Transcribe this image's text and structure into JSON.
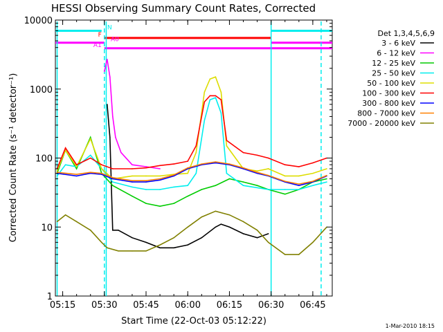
{
  "chart_data": {
    "type": "line",
    "title": "HESSI Observing Summary Count Rates, Corrected",
    "xlabel": "Start Time (22-Oct-03 05:12:22)",
    "ylabel": "Corrected Count Rate (s⁻¹ detector⁻¹)",
    "y_scale": "log",
    "ylim": [
      1,
      10000
    ],
    "xlim": [
      "05:12:22",
      "06:52"
    ],
    "x_ticks": [
      "05:15",
      "05:30",
      "05:45",
      "06:00",
      "06:15",
      "06:30",
      "06:45"
    ],
    "y_ticks": [
      "1",
      "10",
      "100",
      "1000",
      "10000"
    ],
    "legend_title": "Det 1,3,4,5,6,9",
    "legend_position": "right",
    "series": [
      {
        "name": "3 - 6 keV",
        "color": "#000000",
        "x": [
          "05:31",
          "05:32",
          "05:33",
          "05:35",
          "05:40",
          "05:45",
          "05:50",
          "05:55",
          "06:00",
          "06:05",
          "06:10",
          "06:12",
          "06:15",
          "06:20",
          "06:25",
          "06:29"
        ],
        "y": [
          600,
          200,
          9,
          9,
          7,
          6,
          5,
          5,
          5.5,
          7,
          10,
          11,
          10,
          8,
          7,
          8
        ]
      },
      {
        "name": "6 - 12 keV",
        "color": "#ff00ff",
        "x": [
          "05:30",
          "05:31",
          "05:32",
          "05:33",
          "05:34",
          "05:36",
          "05:40",
          "05:45",
          "05:50"
        ],
        "y": [
          1800,
          2700,
          1500,
          400,
          200,
          120,
          80,
          75,
          70
        ]
      },
      {
        "name": "12 - 25 keV",
        "color": "#00cc00",
        "x": [
          "05:13",
          "05:16",
          "05:20",
          "05:25",
          "05:29",
          "05:33",
          "05:40",
          "05:45",
          "05:50",
          "05:55",
          "06:00",
          "06:05",
          "06:10",
          "06:15",
          "06:20",
          "06:25",
          "06:29",
          "06:35",
          "06:40",
          "06:45",
          "06:50"
        ],
        "y": [
          60,
          130,
          70,
          200,
          60,
          40,
          28,
          22,
          20,
          22,
          28,
          35,
          40,
          50,
          45,
          40,
          35,
          30,
          35,
          45,
          50
        ]
      },
      {
        "name": "25 - 50 keV",
        "color": "#00eeee",
        "x": [
          "05:13",
          "05:16",
          "05:20",
          "05:25",
          "05:29",
          "05:33",
          "05:40",
          "05:45",
          "05:50",
          "05:55",
          "06:00",
          "06:03",
          "06:06",
          "06:08",
          "06:10",
          "06:12",
          "06:14",
          "06:20",
          "06:29",
          "06:35",
          "06:40",
          "06:45",
          "06:50"
        ],
        "y": [
          55,
          80,
          75,
          110,
          70,
          45,
          38,
          35,
          35,
          38,
          40,
          60,
          350,
          700,
          750,
          450,
          60,
          40,
          35,
          35,
          35,
          40,
          45
        ]
      },
      {
        "name": "50 - 100 keV",
        "color": "#dddd00",
        "x": [
          "05:13",
          "05:16",
          "05:20",
          "05:25",
          "05:29",
          "05:33",
          "05:40",
          "05:45",
          "05:50",
          "05:55",
          "06:00",
          "06:03",
          "06:06",
          "06:08",
          "06:10",
          "06:12",
          "06:14",
          "06:20",
          "06:25",
          "06:29",
          "06:35",
          "06:40",
          "06:45",
          "06:50"
        ],
        "y": [
          65,
          130,
          75,
          190,
          70,
          50,
          55,
          55,
          55,
          58,
          60,
          120,
          900,
          1400,
          1500,
          900,
          150,
          70,
          65,
          70,
          55,
          55,
          60,
          70
        ]
      },
      {
        "name": "100 - 300 keV",
        "color": "#ff0000",
        "x": [
          "05:13",
          "05:16",
          "05:20",
          "05:25",
          "05:29",
          "05:33",
          "05:40",
          "05:45",
          "05:50",
          "05:55",
          "06:00",
          "06:03",
          "06:06",
          "06:08",
          "06:10",
          "06:12",
          "06:14",
          "06:20",
          "06:25",
          "06:29",
          "06:35",
          "06:40",
          "06:45",
          "06:50"
        ],
        "y": [
          70,
          140,
          80,
          100,
          80,
          70,
          70,
          72,
          78,
          82,
          90,
          150,
          650,
          800,
          800,
          700,
          180,
          120,
          110,
          100,
          80,
          75,
          85,
          100
        ]
      },
      {
        "name": "300 - 800 keV",
        "color": "#0000ff",
        "x": [
          "05:13",
          "05:20",
          "05:25",
          "05:29",
          "05:33",
          "05:40",
          "05:45",
          "05:50",
          "05:55",
          "06:00",
          "06:05",
          "06:10",
          "06:15",
          "06:20",
          "06:25",
          "06:29",
          "06:35",
          "06:40",
          "06:45",
          "06:50"
        ],
        "y": [
          60,
          55,
          60,
          58,
          50,
          45,
          45,
          48,
          55,
          70,
          80,
          85,
          80,
          70,
          60,
          55,
          45,
          40,
          45,
          55
        ]
      },
      {
        "name": "800 - 7000 keV",
        "color": "#ff8000",
        "x": [
          "05:13",
          "05:20",
          "05:25",
          "05:29",
          "05:33",
          "05:40",
          "05:45",
          "05:50",
          "05:55",
          "06:00",
          "06:05",
          "06:10",
          "06:15",
          "06:20",
          "06:25",
          "06:29",
          "06:35",
          "06:40",
          "06:45",
          "06:50"
        ],
        "y": [
          62,
          58,
          62,
          60,
          52,
          47,
          47,
          50,
          57,
          72,
          82,
          88,
          82,
          72,
          62,
          56,
          46,
          42,
          46,
          56
        ]
      },
      {
        "name": "7000 - 20000 keV",
        "color": "#808000",
        "x": [
          "05:13",
          "05:16",
          "05:20",
          "05:25",
          "05:29",
          "05:31",
          "05:35",
          "05:40",
          "05:45",
          "05:50",
          "05:55",
          "06:00",
          "06:05",
          "06:10",
          "06:15",
          "06:20",
          "06:25",
          "06:29",
          "06:35",
          "06:40",
          "06:45",
          "06:50"
        ],
        "y": [
          12,
          15,
          12,
          9,
          6,
          5,
          4.5,
          4.5,
          4.5,
          5.5,
          7,
          10,
          14,
          17,
          15,
          12,
          9,
          6,
          4,
          4,
          6,
          10
        ]
      }
    ],
    "flag_bars": [
      {
        "label": "N",
        "color": "#00eeee",
        "y": 7000,
        "segments": [
          [
            "05:12:22",
            "05:29"
          ],
          [
            "06:30",
            "06:52"
          ]
        ]
      },
      {
        "label": "F",
        "color": "#ff0000",
        "y": 5500,
        "segments": [
          [
            "05:30",
            "06:30"
          ]
        ]
      },
      {
        "label": "A0",
        "color": "#ff00ff",
        "y": 4700,
        "segments": [
          [
            "05:12:22",
            "05:30"
          ],
          [
            "06:30",
            "06:52"
          ]
        ]
      },
      {
        "label": "A1",
        "color": "#ff00ff",
        "y": 3900,
        "segments": [
          [
            "05:30",
            "06:52"
          ]
        ]
      }
    ],
    "vertical_markers": [
      {
        "time": "05:13",
        "color": "#00eeee",
        "style": "solid"
      },
      {
        "time": "05:30",
        "color": "#00eeee",
        "style": "dashed"
      },
      {
        "time": "05:30:40",
        "color": "#00eeee",
        "style": "solid"
      },
      {
        "time": "06:30",
        "color": "#00eeee",
        "style": "solid"
      },
      {
        "time": "06:48",
        "color": "#00eeee",
        "style": "dashed"
      }
    ],
    "grid": false
  },
  "footer": {
    "date_stamp": "1-Mar-2010 18:15"
  }
}
